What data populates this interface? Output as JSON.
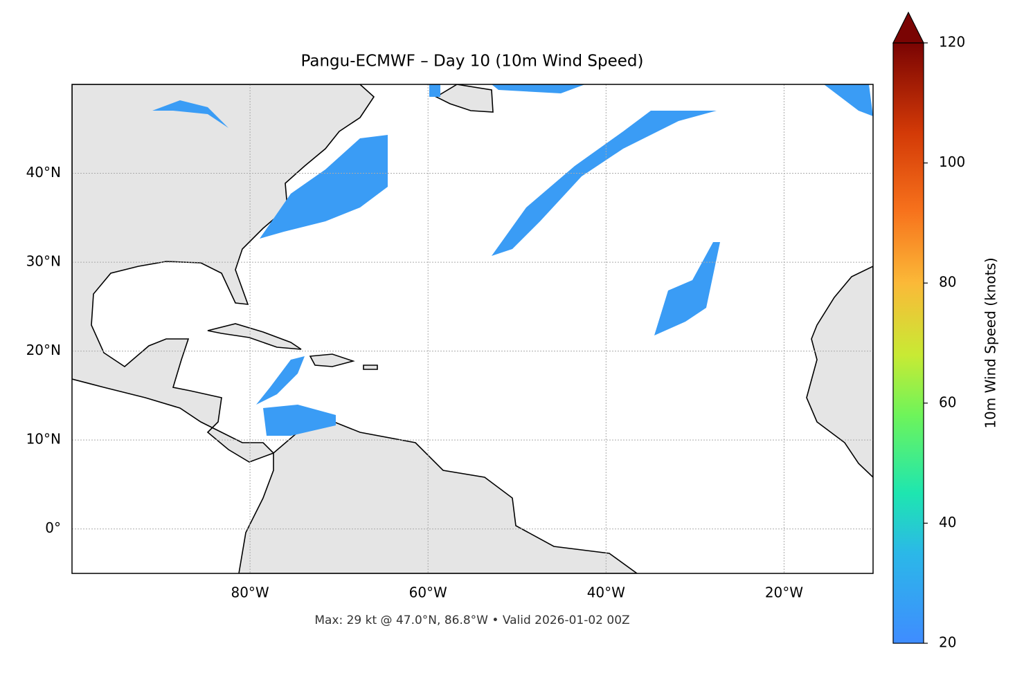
{
  "chart_data": {
    "type": "map",
    "title": "Pangu-ECMWF – Day 10 (10m Wind Speed)",
    "xlim": [
      -100,
      -10
    ],
    "ylim": [
      -5,
      50
    ],
    "xticks": [
      {
        "value": -80,
        "label": "80°W"
      },
      {
        "value": -60,
        "label": "60°W"
      },
      {
        "value": -40,
        "label": "40°W"
      },
      {
        "value": -20,
        "label": "20°W"
      }
    ],
    "yticks": [
      {
        "value": 0,
        "label": "0°"
      },
      {
        "value": 10,
        "label": "10°N"
      },
      {
        "value": 20,
        "label": "20°N"
      },
      {
        "value": 30,
        "label": "30°N"
      },
      {
        "value": 40,
        "label": "40°N"
      }
    ],
    "grid": true,
    "colorbar": {
      "label": "10m Wind Speed (knots)",
      "lim": [
        20,
        120
      ],
      "ticks": [
        20,
        40,
        60,
        80,
        100,
        120
      ],
      "extend": "max"
    },
    "footnote": "Max: 29 kt @ 47.0°N, 86.8°W • Valid 2026-01-02 00Z"
  }
}
